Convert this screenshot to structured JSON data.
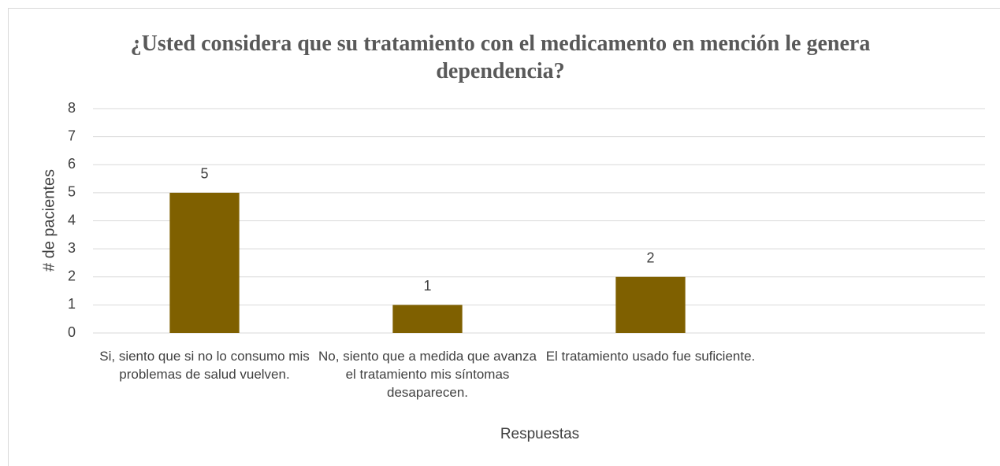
{
  "chart_data": {
    "type": "bar",
    "title": "¿Usted considera que su tratamiento con el medicamento en mención le genera dependencia?",
    "categories": [
      "Si, siento que si no lo consumo mis problemas de salud vuelven.",
      "No, siento que a medida que avanza el tratamiento mis síntomas desaparecen.",
      "El tratamiento usado fue suficiente.",
      null
    ],
    "values": [
      5,
      1,
      2,
      null
    ],
    "color": "#7f6000",
    "ylim": [
      0,
      8
    ],
    "yticks": [
      0,
      1,
      2,
      3,
      4,
      5,
      6,
      7,
      8
    ],
    "grid": true,
    "y_label": "# de pacientes",
    "x_label": "Respuestas"
  }
}
